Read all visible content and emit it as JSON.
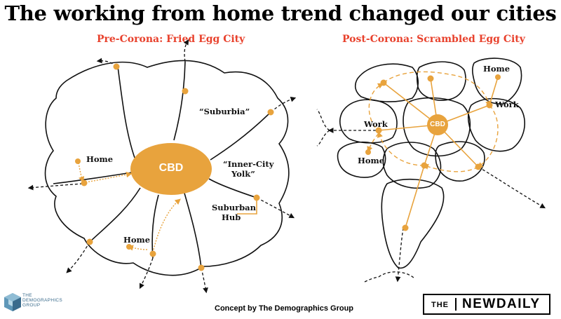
{
  "title": "The working from home trend changed our cities",
  "left_panel": {
    "heading": "Pre-Corona: Fried Egg City",
    "cbd": "CBD",
    "labels": {
      "suburbia": "“Suburbia”",
      "inner_city_line1": "“Inner-City",
      "inner_city_line2": "Yolk”",
      "home_upper": "Home",
      "home_lower": "Home",
      "suburban_hub_line1": "Suburban",
      "suburban_hub_line2": "Hub"
    }
  },
  "right_panel": {
    "heading": "Post-Corona: Scrambled Egg City",
    "cbd": "CBD",
    "labels": {
      "home_top": "Home",
      "work_right": "Work",
      "work_left": "Work",
      "home_left": "Home"
    }
  },
  "footer": "Concept by The Demographics Group",
  "logos": {
    "demographics_line1": "THE",
    "demographics_line2": "DEMOGRAPHICS",
    "demographics_line3": "GROUP",
    "newdaily_the": "THE",
    "newdaily_name": "NEWDAILY"
  },
  "colors": {
    "accent_orange": "#e8a33d",
    "heading_red": "#e8412c",
    "outline": "#111111",
    "logo_blue": "#3a6b8c"
  }
}
